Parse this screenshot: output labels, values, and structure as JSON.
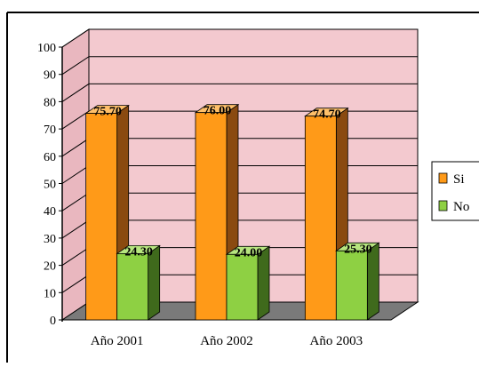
{
  "colors": {
    "background_pink": "#f3c9cf",
    "floor_gray": "#7a7a7a",
    "orange_front": "#ff9a18",
    "orange_side": "#8a4a10",
    "green_front": "#8ed043",
    "green_side": "#3f6a1c",
    "frame": "#000000"
  },
  "chart_data": {
    "type": "bar",
    "three_d": true,
    "categories": [
      "Año 2001",
      "Año 2002",
      "Año 2003"
    ],
    "series": [
      {
        "name": "Si",
        "values": [
          75.7,
          76.0,
          74.7
        ],
        "labels": [
          "75.70",
          "76.00",
          "74.70"
        ],
        "color": "#ff9a18"
      },
      {
        "name": "No",
        "values": [
          24.3,
          24.0,
          25.3
        ],
        "labels": [
          "24.30",
          "24.00",
          "25.30"
        ],
        "color": "#8ed043"
      }
    ],
    "y_ticks": [
      "0",
      "10",
      "20",
      "30",
      "40",
      "50",
      "60",
      "70",
      "80",
      "90",
      "100"
    ],
    "ylim": [
      0,
      100
    ],
    "grid": true,
    "legend_position": "right"
  }
}
